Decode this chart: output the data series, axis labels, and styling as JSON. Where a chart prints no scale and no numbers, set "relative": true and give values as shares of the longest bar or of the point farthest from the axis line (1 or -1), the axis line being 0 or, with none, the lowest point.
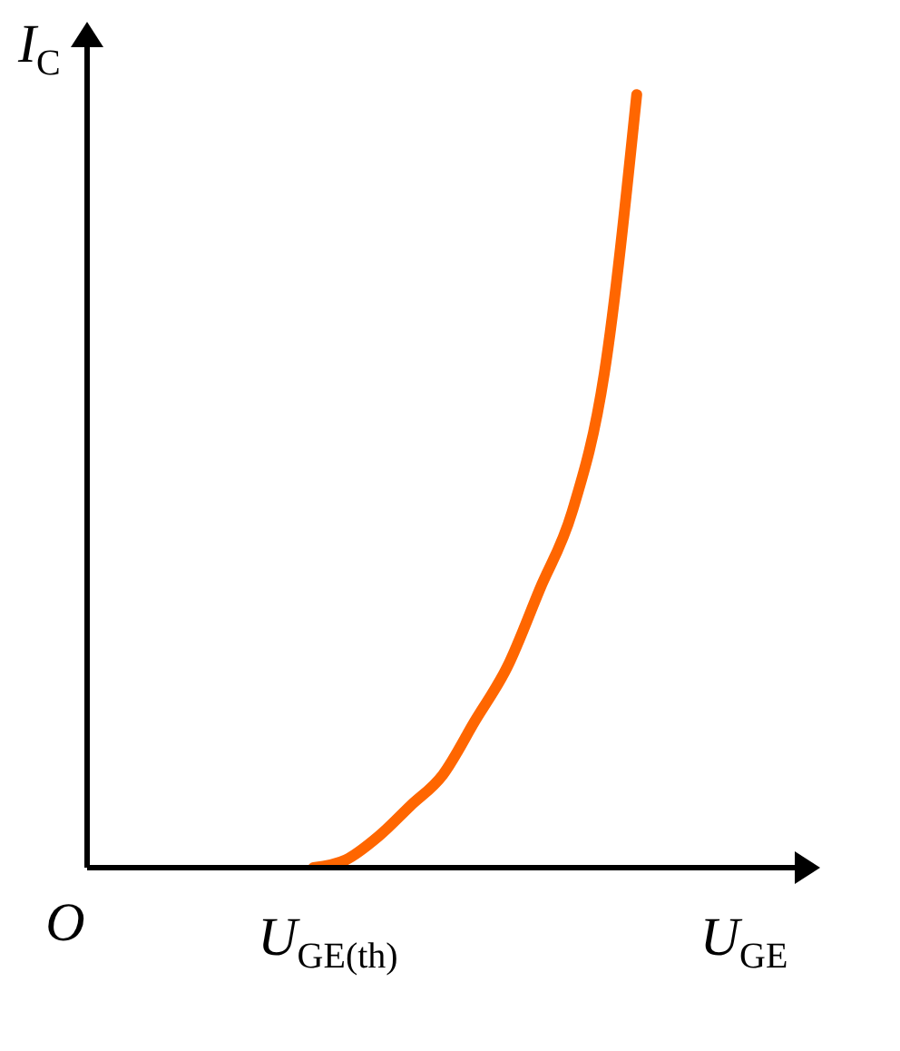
{
  "chart_data": {
    "type": "line",
    "relative": true,
    "xlabel": "U$_{GE}$",
    "ylabel": "I$_{C}$",
    "annotations": [
      "O",
      "U$_{GE(th)}$"
    ],
    "categories": [
      null,
      null,
      null,
      null,
      null,
      null,
      null,
      null,
      null,
      null,
      null,
      null,
      null,
      null,
      null,
      null,
      null,
      null,
      null,
      null,
      null,
      null,
      null
    ],
    "series": [
      {
        "color": "#ff6600",
        "values": [
          null,
          null,
          null,
          null,
          null,
          null,
          null,
          0,
          0.01,
          0.04,
          0.08,
          0.12,
          0.19,
          0.26,
          0.36,
          0.46,
          0.64,
          1,
          null,
          null,
          null,
          null,
          null
        ]
      }
    ],
    "grid": false,
    "legend": false,
    "marker": "none",
    "line_style": "solid"
  }
}
